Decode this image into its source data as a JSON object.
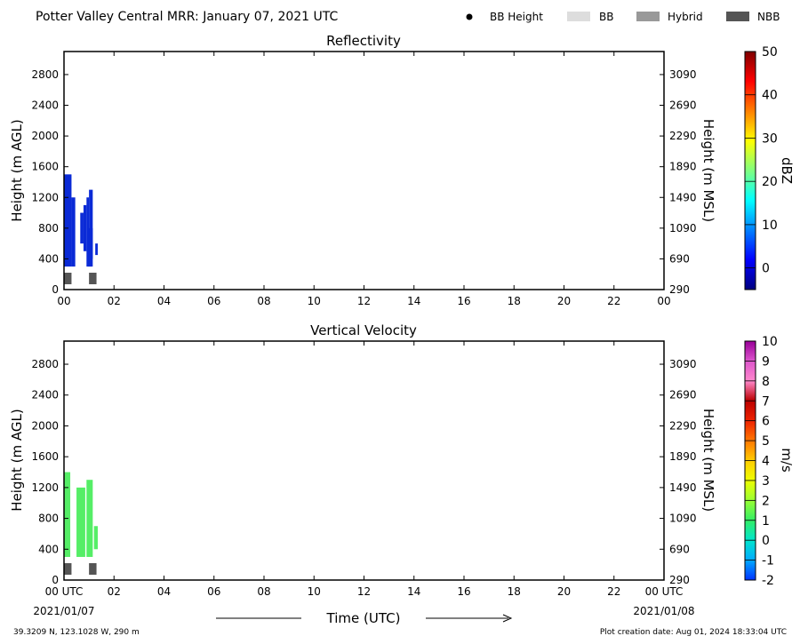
{
  "header": {
    "title": "Potter Valley Central MRR:  January 07, 2021 UTC",
    "legend": [
      {
        "label": "BB Height",
        "marker": "dot",
        "color": "#000000"
      },
      {
        "label": "BB",
        "marker": "box",
        "color": "#dddddd"
      },
      {
        "label": "Hybrid",
        "marker": "box",
        "color": "#999999"
      },
      {
        "label": "NBB",
        "marker": "box",
        "color": "#555555"
      }
    ]
  },
  "footer": {
    "location": "39.3209 N, 123.1028 W, 290 m",
    "created": "Plot creation date: Aug 01, 2024 18:33:04 UTC",
    "xlabel": "Time (UTC)"
  },
  "chart_data": [
    {
      "type": "heatmap",
      "title": "Reflectivity",
      "ylabel": "Height (m AGL)",
      "ylabel_right": "Height (m MSL)",
      "xlim": [
        0,
        24
      ],
      "ylim": [
        0,
        3100
      ],
      "x_ticks": [
        "00",
        "02",
        "04",
        "06",
        "08",
        "10",
        "12",
        "14",
        "16",
        "18",
        "20",
        "22",
        "00"
      ],
      "y_ticks": [
        0,
        400,
        800,
        1200,
        1600,
        2000,
        2400,
        2800
      ],
      "y_ticks_right": [
        "290",
        "690",
        "1090",
        "1490",
        "1890",
        "2290",
        "2690",
        "3090"
      ],
      "colorbar": {
        "label": "dBZ",
        "min": -5,
        "max": 50,
        "ticks": [
          0,
          10,
          20,
          30,
          40,
          50
        ],
        "colors": [
          "#00007f",
          "#0000ff",
          "#0080ff",
          "#00ffff",
          "#80ff80",
          "#ffff00",
          "#ff8000",
          "#ff0000",
          "#7f0000"
        ]
      },
      "color": "#0a2ad6",
      "bands": [
        {
          "x0": 0.0,
          "x1": 0.3,
          "low": 300,
          "high": 1500
        },
        {
          "x0": 0.3,
          "x1": 0.45,
          "low": 300,
          "high": 1200
        },
        {
          "x0": 0.65,
          "x1": 0.78,
          "low": 600,
          "high": 1000
        },
        {
          "x0": 0.78,
          "x1": 0.9,
          "low": 500,
          "high": 1100
        },
        {
          "x0": 0.9,
          "x1": 1.0,
          "low": 300,
          "high": 1200
        },
        {
          "x0": 1.0,
          "x1": 1.1,
          "low": 300,
          "high": 600
        },
        {
          "x0": 0.95,
          "x1": 1.15,
          "low": 300,
          "high": 800
        },
        {
          "x0": 1.0,
          "x1": 1.15,
          "low": 400,
          "high": 1300
        },
        {
          "x0": 1.25,
          "x1": 1.35,
          "low": 450,
          "high": 600
        }
      ],
      "bright_band": [
        {
          "x0": 0.0,
          "x1": 0.3,
          "type": "NBB"
        },
        {
          "x0": 1.0,
          "x1": 1.3,
          "type": "NBB"
        }
      ]
    },
    {
      "type": "heatmap",
      "title": "Vertical Velocity",
      "ylabel": "Height (m AGL)",
      "ylabel_right": "Height (m MSL)",
      "xlim": [
        0,
        24
      ],
      "ylim": [
        0,
        3100
      ],
      "x_ticks": [
        "00 UTC",
        "02",
        "04",
        "06",
        "08",
        "10",
        "12",
        "14",
        "16",
        "18",
        "20",
        "22",
        "00 UTC"
      ],
      "x_dates": [
        "2021/01/07",
        "2021/01/08"
      ],
      "y_ticks": [
        0,
        400,
        800,
        1200,
        1600,
        2000,
        2400,
        2800
      ],
      "y_ticks_right": [
        "290",
        "690",
        "1090",
        "1490",
        "1890",
        "2290",
        "2690",
        "3090"
      ],
      "colorbar": {
        "label": "m/s",
        "min": -2,
        "max": 10,
        "ticks": [
          -2,
          -1,
          0,
          1,
          2,
          3,
          4,
          5,
          6,
          7,
          8,
          9,
          10
        ],
        "colors": [
          "#0033ff",
          "#00aaff",
          "#00e5cc",
          "#33ee66",
          "#99ff33",
          "#eeff00",
          "#ffcc00",
          "#ff7700",
          "#ee2200",
          "#bb0000",
          "#ff88cc",
          "#dd55cc",
          "#990099"
        ]
      },
      "color": "#55ee66",
      "bands": [
        {
          "x0": 0.0,
          "x1": 0.25,
          "low": 300,
          "high": 1400
        },
        {
          "x0": 0.5,
          "x1": 0.85,
          "low": 300,
          "high": 1200
        },
        {
          "x0": 0.9,
          "x1": 1.15,
          "low": 300,
          "high": 1300
        },
        {
          "x0": 1.2,
          "x1": 1.35,
          "low": 400,
          "high": 700
        }
      ],
      "bright_band": [
        {
          "x0": 0.0,
          "x1": 0.3,
          "type": "NBB"
        },
        {
          "x0": 1.0,
          "x1": 1.3,
          "type": "NBB"
        }
      ]
    }
  ]
}
